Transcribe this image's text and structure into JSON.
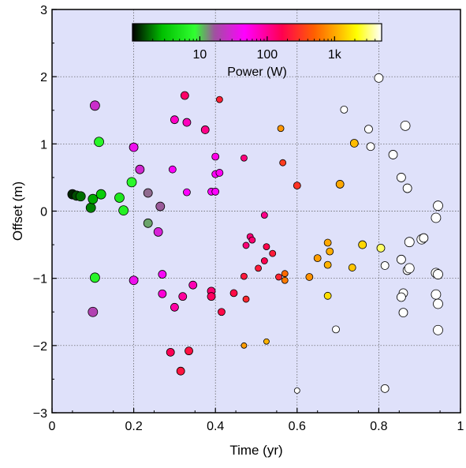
{
  "chart_data": {
    "type": "scatter",
    "xlabel": "Time (yr)",
    "ylabel": "Offset (m)",
    "xlim": [
      0,
      1
    ],
    "ylim": [
      -3,
      3
    ],
    "x_ticks": [
      0,
      0.2,
      0.4,
      0.6,
      0.8,
      1
    ],
    "x_tick_labels": [
      "0",
      "0.2",
      "0.4",
      "0.6",
      "0.8",
      "1"
    ],
    "y_ticks": [
      -3,
      -2,
      -1,
      0,
      1,
      2,
      3
    ],
    "y_tick_labels": [
      "−3",
      "−2",
      "−1",
      "0",
      "1",
      "2",
      "3"
    ],
    "grid": true,
    "colorbar": {
      "label": "Power (W)",
      "scale": "log",
      "range": [
        1,
        5000
      ],
      "tick_values": [
        10,
        100,
        1000
      ],
      "tick_labels": [
        "10",
        "100",
        "1k"
      ],
      "colors": [
        "#000000",
        "#00c000",
        "#30ff30",
        "#a050a0",
        "#ff00ff",
        "#ff0050",
        "#ff6000",
        "#ffb000",
        "#ffff00",
        "#ffffff"
      ],
      "color_stops": [
        0,
        0.12,
        0.25,
        0.33,
        0.45,
        0.6,
        0.73,
        0.82,
        0.9,
        1
      ]
    },
    "colors": {
      "plot_background": "#dfe1fa",
      "marker_edge": "#000000"
    },
    "points": [
      {
        "x": 0.05,
        "y": 0.25,
        "power": 1.2,
        "size": 12
      },
      {
        "x": 0.06,
        "y": 0.23,
        "power": 1.5,
        "size": 12
      },
      {
        "x": 0.07,
        "y": 0.22,
        "power": 1.8,
        "size": 12
      },
      {
        "x": 0.095,
        "y": 0.05,
        "power": 2.0,
        "size": 12
      },
      {
        "x": 0.1,
        "y": 0.18,
        "power": 2.5,
        "size": 12
      },
      {
        "x": 0.12,
        "y": 0.25,
        "power": 3.5,
        "size": 12
      },
      {
        "x": 0.165,
        "y": 0.2,
        "power": 5.5,
        "size": 12
      },
      {
        "x": 0.175,
        "y": 0.01,
        "power": 6.5,
        "size": 12
      },
      {
        "x": 0.195,
        "y": 0.43,
        "power": 7.5,
        "size": 12
      },
      {
        "x": 0.115,
        "y": 1.03,
        "power": 7,
        "size": 12
      },
      {
        "x": 0.105,
        "y": -0.99,
        "power": 7,
        "size": 12
      },
      {
        "x": 0.235,
        "y": -0.18,
        "power": 12,
        "size": 11
      },
      {
        "x": 0.235,
        "y": 0.27,
        "power": 15,
        "size": 11
      },
      {
        "x": 0.265,
        "y": 0.07,
        "power": 16,
        "size": 11
      },
      {
        "x": 0.1,
        "y": -1.5,
        "power": 20,
        "size": 12
      },
      {
        "x": 0.105,
        "y": 1.57,
        "power": 26,
        "size": 12
      },
      {
        "x": 0.215,
        "y": 0.62,
        "power": 28,
        "size": 11
      },
      {
        "x": 0.26,
        "y": -0.31,
        "power": 30,
        "size": 11
      },
      {
        "x": 0.2,
        "y": 0.95,
        "power": 38,
        "size": 11
      },
      {
        "x": 0.2,
        "y": -1.03,
        "power": 38,
        "size": 11
      },
      {
        "x": 0.27,
        "y": -0.94,
        "power": 42,
        "size": 10
      },
      {
        "x": 0.295,
        "y": 0.62,
        "power": 44,
        "size": 9
      },
      {
        "x": 0.33,
        "y": 0.28,
        "power": 46,
        "size": 9
      },
      {
        "x": 0.39,
        "y": 0.29,
        "power": 46,
        "size": 9
      },
      {
        "x": 0.4,
        "y": 0.29,
        "power": 46,
        "size": 9
      },
      {
        "x": 0.4,
        "y": 0.55,
        "power": 48,
        "size": 9
      },
      {
        "x": 0.41,
        "y": 0.57,
        "power": 50,
        "size": 9
      },
      {
        "x": 0.4,
        "y": 0.81,
        "power": 55,
        "size": 9
      },
      {
        "x": 0.27,
        "y": -1.23,
        "power": 62,
        "size": 10
      },
      {
        "x": 0.3,
        "y": 1.36,
        "power": 70,
        "size": 10
      },
      {
        "x": 0.33,
        "y": 1.32,
        "power": 75,
        "size": 10
      },
      {
        "x": 0.345,
        "y": -1.1,
        "power": 80,
        "size": 10
      },
      {
        "x": 0.3,
        "y": -1.43,
        "power": 90,
        "size": 10
      },
      {
        "x": 0.32,
        "y": -1.27,
        "power": 95,
        "size": 10
      },
      {
        "x": 0.375,
        "y": 1.21,
        "power": 110,
        "size": 10
      },
      {
        "x": 0.52,
        "y": -0.06,
        "power": 110,
        "size": 8
      },
      {
        "x": 0.47,
        "y": 0.79,
        "power": 120,
        "size": 8
      },
      {
        "x": 0.475,
        "y": -0.51,
        "power": 125,
        "size": 8
      },
      {
        "x": 0.485,
        "y": -0.38,
        "power": 125,
        "size": 8
      },
      {
        "x": 0.49,
        "y": -0.43,
        "power": 130,
        "size": 8
      },
      {
        "x": 0.39,
        "y": -1.19,
        "power": 130,
        "size": 10
      },
      {
        "x": 0.325,
        "y": 1.72,
        "power": 140,
        "size": 10
      },
      {
        "x": 0.39,
        "y": -1.27,
        "power": 150,
        "size": 10
      },
      {
        "x": 0.29,
        "y": -2.1,
        "power": 160,
        "size": 10
      },
      {
        "x": 0.52,
        "y": -0.74,
        "power": 170,
        "size": 8
      },
      {
        "x": 0.525,
        "y": -0.53,
        "power": 175,
        "size": 8
      },
      {
        "x": 0.415,
        "y": -1.5,
        "power": 185,
        "size": 9
      },
      {
        "x": 0.445,
        "y": -1.22,
        "power": 190,
        "size": 9
      },
      {
        "x": 0.335,
        "y": -2.08,
        "power": 200,
        "size": 10
      },
      {
        "x": 0.315,
        "y": -2.38,
        "power": 210,
        "size": 10
      },
      {
        "x": 0.47,
        "y": -0.97,
        "power": 220,
        "size": 8
      },
      {
        "x": 0.505,
        "y": -0.85,
        "power": 225,
        "size": 8
      },
      {
        "x": 0.54,
        "y": -0.63,
        "power": 230,
        "size": 8
      },
      {
        "x": 0.41,
        "y": 1.66,
        "power": 240,
        "size": 8
      },
      {
        "x": 0.555,
        "y": -0.98,
        "power": 250,
        "size": 8
      },
      {
        "x": 0.475,
        "y": -1.31,
        "power": 260,
        "size": 8
      },
      {
        "x": 0.6,
        "y": 0.38,
        "power": 300,
        "size": 9
      },
      {
        "x": 0.565,
        "y": 0.72,
        "power": 330,
        "size": 8
      },
      {
        "x": 0.57,
        "y": -0.93,
        "power": 550,
        "size": 8
      },
      {
        "x": 0.57,
        "y": -1.03,
        "power": 650,
        "size": 8
      },
      {
        "x": 0.63,
        "y": -0.98,
        "power": 800,
        "size": 9
      },
      {
        "x": 0.65,
        "y": -0.7,
        "power": 900,
        "size": 9
      },
      {
        "x": 0.56,
        "y": 1.23,
        "power": 850,
        "size": 8
      },
      {
        "x": 0.47,
        "y": -2.0,
        "power": 900,
        "size": 7
      },
      {
        "x": 0.525,
        "y": -1.94,
        "power": 1100,
        "size": 7
      },
      {
        "x": 0.675,
        "y": -0.47,
        "power": 1000,
        "size": 9
      },
      {
        "x": 0.68,
        "y": -0.6,
        "power": 1050,
        "size": 9
      },
      {
        "x": 0.675,
        "y": -0.8,
        "power": 1100,
        "size": 9
      },
      {
        "x": 0.705,
        "y": 0.4,
        "power": 1000,
        "size": 10
      },
      {
        "x": 0.74,
        "y": 1.01,
        "power": 1200,
        "size": 10
      },
      {
        "x": 0.735,
        "y": -0.84,
        "power": 1300,
        "size": 9
      },
      {
        "x": 0.76,
        "y": -0.5,
        "power": 1500,
        "size": 10
      },
      {
        "x": 0.675,
        "y": -1.26,
        "power": 1600,
        "size": 9
      },
      {
        "x": 0.805,
        "y": -0.55,
        "power": 3000,
        "size": 10
      },
      {
        "x": 0.715,
        "y": 1.51,
        "power": 5000,
        "size": 9
      },
      {
        "x": 0.775,
        "y": 1.22,
        "power": 5000,
        "size": 10
      },
      {
        "x": 0.78,
        "y": 0.96,
        "power": 5000,
        "size": 10
      },
      {
        "x": 0.8,
        "y": 1.98,
        "power": 5000,
        "size": 11
      },
      {
        "x": 0.835,
        "y": 0.84,
        "power": 5000,
        "size": 11
      },
      {
        "x": 0.865,
        "y": 1.27,
        "power": 5000,
        "size": 12
      },
      {
        "x": 0.855,
        "y": 0.5,
        "power": 5000,
        "size": 11
      },
      {
        "x": 0.87,
        "y": 0.34,
        "power": 5000,
        "size": 11
      },
      {
        "x": 0.815,
        "y": -0.81,
        "power": 5000,
        "size": 10
      },
      {
        "x": 0.855,
        "y": -0.72,
        "power": 5000,
        "size": 11
      },
      {
        "x": 0.87,
        "y": -0.88,
        "power": 5000,
        "size": 11
      },
      {
        "x": 0.875,
        "y": -0.85,
        "power": 5000,
        "size": 12
      },
      {
        "x": 0.875,
        "y": -0.46,
        "power": 5000,
        "size": 12
      },
      {
        "x": 0.905,
        "y": -0.42,
        "power": 5000,
        "size": 12
      },
      {
        "x": 0.91,
        "y": -0.4,
        "power": 5000,
        "size": 11
      },
      {
        "x": 0.94,
        "y": -0.92,
        "power": 5000,
        "size": 12
      },
      {
        "x": 0.945,
        "y": -0.94,
        "power": 5000,
        "size": 12
      },
      {
        "x": 0.94,
        "y": -0.1,
        "power": 5000,
        "size": 12
      },
      {
        "x": 0.945,
        "y": 0.08,
        "power": 5000,
        "size": 12
      },
      {
        "x": 0.86,
        "y": -1.22,
        "power": 5000,
        "size": 11
      },
      {
        "x": 0.855,
        "y": -1.28,
        "power": 5000,
        "size": 11
      },
      {
        "x": 0.86,
        "y": -1.51,
        "power": 5000,
        "size": 11
      },
      {
        "x": 0.94,
        "y": -1.24,
        "power": 5000,
        "size": 12
      },
      {
        "x": 0.945,
        "y": -1.38,
        "power": 5000,
        "size": 12
      },
      {
        "x": 0.945,
        "y": -1.77,
        "power": 5000,
        "size": 12
      },
      {
        "x": 0.695,
        "y": -1.76,
        "power": 5000,
        "size": 9
      },
      {
        "x": 0.6,
        "y": -2.67,
        "power": 5000,
        "size": 7
      },
      {
        "x": 0.815,
        "y": -2.64,
        "power": 5000,
        "size": 10
      }
    ]
  }
}
